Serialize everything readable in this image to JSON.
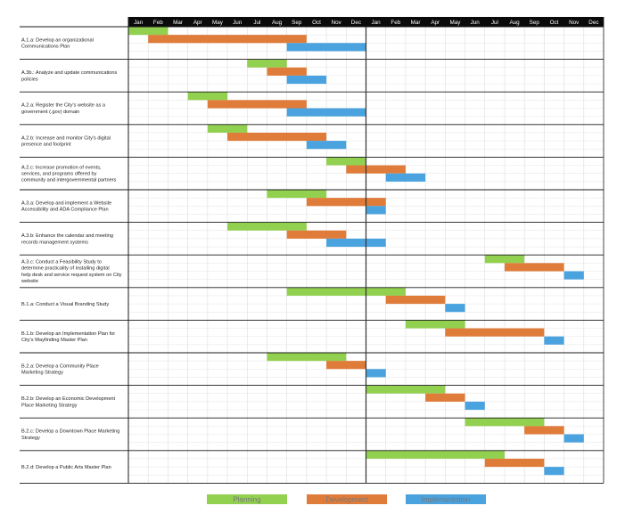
{
  "chart_data": {
    "type": "gantt",
    "title": "",
    "months": [
      "Jan",
      "Feb",
      "Mar",
      "Apr",
      "May",
      "Jun",
      "Jul",
      "Aug",
      "Sep",
      "Oct",
      "Nov",
      "Dec",
      "Jan",
      "Feb",
      "Mar",
      "Apr",
      "May",
      "Jun",
      "Jul",
      "Aug",
      "Sep",
      "Oct",
      "Nov",
      "Dec"
    ],
    "colors": {
      "Planning": "#92d050",
      "Development": "#e07c3a",
      "Implementation": "#4aa3df"
    },
    "legend": [
      {
        "name": "Planning",
        "color": "#92d050"
      },
      {
        "name": "Development",
        "color": "#e07c3a"
      },
      {
        "name": "Implementation",
        "color": "#4aa3df"
      }
    ],
    "legend_position": "bottom",
    "tasks": [
      {
        "label_lines": [
          "A.1.a: Develop an organizational",
          "Communications Plan"
        ],
        "bars": [
          {
            "phase": "Planning",
            "start": 0,
            "end": 2
          },
          {
            "phase": "Development",
            "start": 1,
            "end": 9
          },
          {
            "phase": "Implementation",
            "start": 8,
            "end": 12
          }
        ]
      },
      {
        "label_lines": [
          "A.3b.: Analyze and update communications",
          "policies"
        ],
        "bars": [
          {
            "phase": "Planning",
            "start": 6,
            "end": 8
          },
          {
            "phase": "Development",
            "start": 7,
            "end": 9
          },
          {
            "phase": "Implementation",
            "start": 8,
            "end": 10
          }
        ]
      },
      {
        "label_lines": [
          "A.2.a: Register the City's website as a",
          "government (.gov) domain"
        ],
        "bars": [
          {
            "phase": "Planning",
            "start": 3,
            "end": 5
          },
          {
            "phase": "Development",
            "start": 4,
            "end": 9
          },
          {
            "phase": "Implementation",
            "start": 8,
            "end": 12
          }
        ]
      },
      {
        "label_lines": [
          "A.2.b: Increase and monitor City's digital",
          "presence and footprint"
        ],
        "bars": [
          {
            "phase": "Planning",
            "start": 4,
            "end": 6
          },
          {
            "phase": "Development",
            "start": 5,
            "end": 10
          },
          {
            "phase": "Implementation",
            "start": 9,
            "end": 11
          }
        ]
      },
      {
        "label_lines": [
          "A.2.c: Increase promotion of events,",
          "services, and programs offered by",
          "community and intergovernmental partners"
        ],
        "bars": [
          {
            "phase": "Planning",
            "start": 10,
            "end": 12
          },
          {
            "phase": "Development",
            "start": 11,
            "end": 14
          },
          {
            "phase": "Implementation",
            "start": 13,
            "end": 15
          }
        ]
      },
      {
        "label_lines": [
          "A.3.a: Develop and implement a Website",
          "Accessibility and ADA Compliance Plan"
        ],
        "bars": [
          {
            "phase": "Planning",
            "start": 7,
            "end": 10
          },
          {
            "phase": "Development",
            "start": 9,
            "end": 13
          },
          {
            "phase": "Implementation",
            "start": 12,
            "end": 13
          }
        ]
      },
      {
        "label_lines": [
          "A.3.b: Enhance the calendar and meeting",
          "records management systems"
        ],
        "bars": [
          {
            "phase": "Planning",
            "start": 5,
            "end": 9
          },
          {
            "phase": "Development",
            "start": 8,
            "end": 11
          },
          {
            "phase": "Implementation",
            "start": 10,
            "end": 13
          }
        ]
      },
      {
        "label_lines": [
          "A.3.c: Conduct a Feasibility Study to",
          "determine practicality of installing digital",
          "help desk and service request system on City",
          "website"
        ],
        "bars": [
          {
            "phase": "Planning",
            "start": 18,
            "end": 20
          },
          {
            "phase": "Development",
            "start": 19,
            "end": 22
          },
          {
            "phase": "Implementation",
            "start": 22,
            "end": 23
          }
        ]
      },
      {
        "label_lines": [
          "B.1.a: Conduct a Visual Branding Study"
        ],
        "bars": [
          {
            "phase": "Planning",
            "start": 8,
            "end": 14
          },
          {
            "phase": "Development",
            "start": 13,
            "end": 16
          },
          {
            "phase": "Implementation",
            "start": 16,
            "end": 17
          }
        ]
      },
      {
        "label_lines": [
          "B.1.b: Develop an Implementation Plan for",
          "City's Wayfinding Master Plan"
        ],
        "bars": [
          {
            "phase": "Planning",
            "start": 14,
            "end": 17
          },
          {
            "phase": "Development",
            "start": 16,
            "end": 21
          },
          {
            "phase": "Implementation",
            "start": 21,
            "end": 22
          }
        ]
      },
      {
        "label_lines": [
          "B.2.a: Develop a Community Place",
          "Marketing Strategy"
        ],
        "bars": [
          {
            "phase": "Planning",
            "start": 7,
            "end": 11
          },
          {
            "phase": "Development",
            "start": 10,
            "end": 12
          },
          {
            "phase": "Implementation",
            "start": 12,
            "end": 13
          }
        ]
      },
      {
        "label_lines": [
          "B.2.b: Develop an Economic Development",
          "Place Marketing Strategy"
        ],
        "bars": [
          {
            "phase": "Planning",
            "start": 12,
            "end": 16
          },
          {
            "phase": "Development",
            "start": 15,
            "end": 17
          },
          {
            "phase": "Implementation",
            "start": 17,
            "end": 18
          }
        ]
      },
      {
        "label_lines": [
          "B.2.c: Develop a Downtown Place Marketing",
          "Strategy"
        ],
        "bars": [
          {
            "phase": "Planning",
            "start": 17,
            "end": 21
          },
          {
            "phase": "Development",
            "start": 20,
            "end": 22
          },
          {
            "phase": "Implementation",
            "start": 22,
            "end": 23
          }
        ]
      },
      {
        "label_lines": [
          "B.2.d: Develop a Public Arts Master Plan"
        ],
        "bars": [
          {
            "phase": "Planning",
            "start": 12,
            "end": 19
          },
          {
            "phase": "Development",
            "start": 18,
            "end": 21
          },
          {
            "phase": "Implementation",
            "start": 21,
            "end": 22
          }
        ]
      }
    ]
  }
}
